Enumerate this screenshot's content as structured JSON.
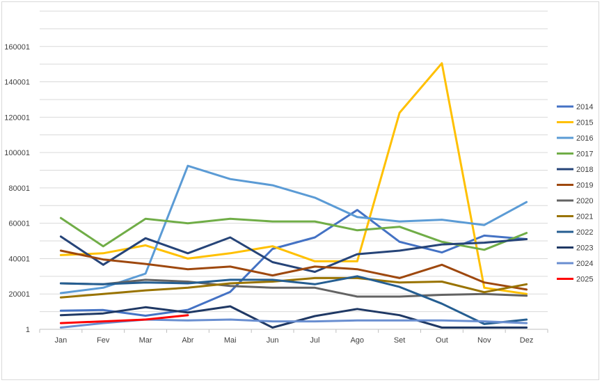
{
  "chart_data": {
    "type": "line",
    "title": "",
    "xlabel": "",
    "ylabel": "",
    "categories": [
      "Jan",
      "Fev",
      "Mar",
      "Abr",
      "Mai",
      "Jun",
      "Jul",
      "Ago",
      "Set",
      "Out",
      "Nov",
      "Dez"
    ],
    "yticks": [
      "1",
      "20001",
      "40001",
      "60001",
      "80001",
      "100001",
      "120001",
      "140001",
      "160001"
    ],
    "ylim": [
      1,
      180001
    ],
    "grid": true,
    "legend_position": "right",
    "series": [
      {
        "name": "2014",
        "color": "#4472c4",
        "values": [
          10500,
          10900,
          7700,
          11000,
          21200,
          45500,
          52000,
          67500,
          49500,
          43500,
          53000,
          51000
        ]
      },
      {
        "name": "2015",
        "color": "#ffc000",
        "values": [
          42000,
          43000,
          47500,
          40000,
          43000,
          47000,
          38500,
          38500,
          122500,
          150500,
          23500,
          20000
        ]
      },
      {
        "name": "2016",
        "color": "#5b9bd5",
        "values": [
          20500,
          23500,
          31500,
          92500,
          85000,
          81500,
          74500,
          63500,
          61000,
          62000,
          59000,
          72000
        ]
      },
      {
        "name": "2017",
        "color": "#70ad47",
        "values": [
          63000,
          47000,
          62500,
          60000,
          62500,
          61000,
          61000,
          56000,
          58000,
          49500,
          45000,
          54500
        ]
      },
      {
        "name": "2018",
        "color": "#264478",
        "values": [
          52500,
          36500,
          51500,
          43000,
          52000,
          38000,
          32500,
          42500,
          44500,
          48000,
          49000,
          51000
        ]
      },
      {
        "name": "2019",
        "color": "#9e480e",
        "values": [
          44500,
          39500,
          37000,
          34000,
          35500,
          30500,
          35500,
          34000,
          29000,
          36500,
          26500,
          22500
        ]
      },
      {
        "name": "2020",
        "color": "#636363",
        "values": [
          26000,
          25500,
          28000,
          27000,
          24500,
          23500,
          23500,
          18500,
          18500,
          19500,
          20000,
          19000
        ]
      },
      {
        "name": "2021",
        "color": "#997300",
        "values": [
          18000,
          20000,
          22000,
          23500,
          26000,
          27000,
          29000,
          29000,
          26500,
          27000,
          21000,
          25500
        ]
      },
      {
        "name": "2022",
        "color": "#255e91",
        "values": [
          26000,
          25500,
          26500,
          26000,
          28000,
          28000,
          25500,
          30000,
          24000,
          14500,
          3000,
          5500
        ]
      },
      {
        "name": "2023",
        "color": "#1f3864",
        "values": [
          8000,
          9000,
          12500,
          9500,
          13000,
          1000,
          7500,
          11500,
          8000,
          1000,
          1000,
          1000
        ]
      },
      {
        "name": "2024",
        "color": "#698ed0",
        "values": [
          1000,
          3500,
          5500,
          5000,
          5500,
          4500,
          4500,
          5000,
          5000,
          5000,
          4500,
          3500
        ]
      },
      {
        "name": "2025",
        "color": "#ff0000",
        "values": [
          3500,
          4500,
          5500,
          8000,
          null,
          null,
          null,
          null,
          null,
          null,
          null,
          null
        ]
      }
    ]
  }
}
